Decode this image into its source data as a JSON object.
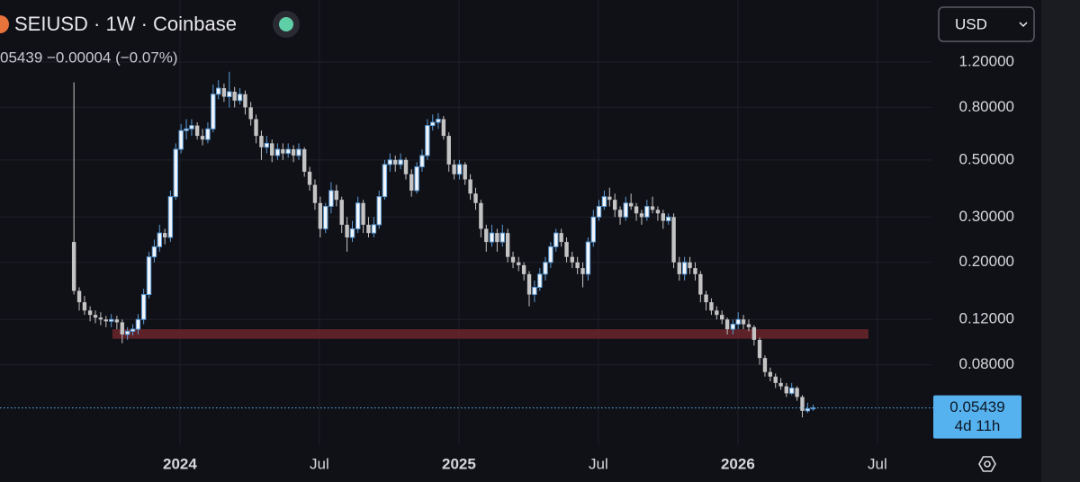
{
  "chart_data": {
    "type": "candlestick",
    "title": "SEIUSD · 1W · Coinbase",
    "ohlc_summary": "05439 −0.00004 (−0.07%)",
    "currency": "USD",
    "countdown": "4d 11h",
    "last_price": 0.05439,
    "log_scale": true,
    "grid": true,
    "up_color": "#5b9bd5",
    "down_color": "#c4c4c4",
    "zone": {
      "color": "#6b262c",
      "ylim": [
        0.101,
        0.11
      ],
      "xlim": [
        2023.758,
        2026.468
      ]
    },
    "xlim": [
      2023.355,
      2026.694
    ],
    "xticks": [
      2024,
      {
        "value": 2024.5,
        "label": "Jul"
      },
      2025,
      {
        "value": 2025.5,
        "label": "Jul"
      },
      2026,
      {
        "value": 2026.5,
        "label": "Jul"
      }
    ],
    "ylim": [
      0.039,
      2.09
    ],
    "yticks": [
      {
        "value": 1.2,
        "label": "1.20000"
      },
      {
        "value": 0.8,
        "label": "0.80000"
      },
      {
        "value": 0.5,
        "label": "0.50000"
      },
      {
        "value": 0.3,
        "label": "0.30000"
      },
      {
        "value": 0.2,
        "label": "0.20000"
      },
      {
        "value": 0.12,
        "label": "0.12000"
      },
      {
        "value": 0.08,
        "label": "0.08000"
      }
    ],
    "x": [
      2023.62,
      2023.639,
      2023.658,
      2023.678,
      2023.697,
      2023.716,
      2023.735,
      2023.754,
      2023.774,
      2023.793,
      2023.812,
      2023.831,
      2023.85,
      2023.87,
      2023.889,
      2023.908,
      2023.927,
      2023.946,
      2023.966,
      2023.985,
      2024.004,
      2024.023,
      2024.042,
      2024.062,
      2024.081,
      2024.1,
      2024.119,
      2024.138,
      2024.158,
      2024.177,
      2024.196,
      2024.215,
      2024.234,
      2024.254,
      2024.273,
      2024.292,
      2024.311,
      2024.33,
      2024.35,
      2024.369,
      2024.388,
      2024.407,
      2024.426,
      2024.446,
      2024.465,
      2024.484,
      2024.503,
      2024.522,
      2024.542,
      2024.561,
      2024.58,
      2024.599,
      2024.618,
      2024.638,
      2024.657,
      2024.676,
      2024.695,
      2024.714,
      2024.734,
      2024.753,
      2024.772,
      2024.791,
      2024.81,
      2024.83,
      2024.849,
      2024.868,
      2024.887,
      2024.906,
      2024.926,
      2024.945,
      2024.964,
      2024.983,
      2025.002,
      2025.022,
      2025.041,
      2025.06,
      2025.079,
      2025.098,
      2025.118,
      2025.137,
      2025.156,
      2025.175,
      2025.194,
      2025.214,
      2025.233,
      2025.252,
      2025.271,
      2025.29,
      2025.31,
      2025.329,
      2025.348,
      2025.367,
      2025.386,
      2025.406,
      2025.425,
      2025.444,
      2025.463,
      2025.482,
      2025.502,
      2025.521,
      2025.54,
      2025.559,
      2025.578,
      2025.598,
      2025.617,
      2025.636,
      2025.655,
      2025.674,
      2025.694,
      2025.713,
      2025.732,
      2025.751,
      2025.77,
      2025.79,
      2025.809,
      2025.828,
      2025.847,
      2025.866,
      2025.886,
      2025.905,
      2025.924,
      2025.943,
      2025.962,
      2025.982,
      2026.001,
      2026.02,
      2026.039,
      2026.058,
      2026.078,
      2026.097,
      2026.116,
      2026.135,
      2026.154,
      2026.174,
      2026.193,
      2026.212,
      2026.231,
      2026.25,
      2026.27
    ],
    "ohlc": [
      [
        0.24,
        1.0,
        0.15,
        0.155
      ],
      [
        0.155,
        0.16,
        0.13,
        0.14
      ],
      [
        0.14,
        0.148,
        0.125,
        0.13
      ],
      [
        0.13,
        0.135,
        0.118,
        0.125
      ],
      [
        0.125,
        0.13,
        0.116,
        0.122
      ],
      [
        0.122,
        0.128,
        0.114,
        0.12
      ],
      [
        0.12,
        0.124,
        0.112,
        0.118
      ],
      [
        0.118,
        0.126,
        0.112,
        0.12
      ],
      [
        0.12,
        0.124,
        0.11,
        0.117
      ],
      [
        0.117,
        0.12,
        0.097,
        0.105
      ],
      [
        0.105,
        0.112,
        0.1,
        0.108
      ],
      [
        0.108,
        0.115,
        0.104,
        0.11
      ],
      [
        0.11,
        0.126,
        0.105,
        0.12
      ],
      [
        0.12,
        0.158,
        0.115,
        0.15
      ],
      [
        0.15,
        0.22,
        0.145,
        0.21
      ],
      [
        0.21,
        0.245,
        0.2,
        0.23
      ],
      [
        0.23,
        0.28,
        0.22,
        0.26
      ],
      [
        0.26,
        0.27,
        0.235,
        0.25
      ],
      [
        0.25,
        0.38,
        0.24,
        0.36
      ],
      [
        0.36,
        0.58,
        0.35,
        0.55
      ],
      [
        0.55,
        0.69,
        0.53,
        0.65
      ],
      [
        0.65,
        0.72,
        0.6,
        0.66
      ],
      [
        0.66,
        0.72,
        0.62,
        0.68
      ],
      [
        0.68,
        0.7,
        0.6,
        0.62
      ],
      [
        0.62,
        0.66,
        0.57,
        0.6
      ],
      [
        0.6,
        0.7,
        0.58,
        0.66
      ],
      [
        0.66,
        0.98,
        0.64,
        0.9
      ],
      [
        0.9,
        1.02,
        0.86,
        0.95
      ],
      [
        0.95,
        0.99,
        0.84,
        0.88
      ],
      [
        0.88,
        1.1,
        0.8,
        0.92
      ],
      [
        0.92,
        0.96,
        0.8,
        0.85
      ],
      [
        0.85,
        0.95,
        0.82,
        0.9
      ],
      [
        0.9,
        0.93,
        0.75,
        0.8
      ],
      [
        0.8,
        0.84,
        0.68,
        0.72
      ],
      [
        0.72,
        0.75,
        0.58,
        0.62
      ],
      [
        0.62,
        0.65,
        0.5,
        0.56
      ],
      [
        0.56,
        0.62,
        0.53,
        0.58
      ],
      [
        0.58,
        0.6,
        0.49,
        0.52
      ],
      [
        0.52,
        0.58,
        0.5,
        0.55
      ],
      [
        0.55,
        0.58,
        0.5,
        0.53
      ],
      [
        0.53,
        0.58,
        0.51,
        0.55
      ],
      [
        0.55,
        0.57,
        0.49,
        0.52
      ],
      [
        0.52,
        0.58,
        0.5,
        0.55
      ],
      [
        0.55,
        0.56,
        0.43,
        0.45
      ],
      [
        0.45,
        0.47,
        0.38,
        0.4
      ],
      [
        0.4,
        0.42,
        0.32,
        0.34
      ],
      [
        0.34,
        0.36,
        0.25,
        0.27
      ],
      [
        0.27,
        0.34,
        0.26,
        0.33
      ],
      [
        0.33,
        0.41,
        0.31,
        0.38
      ],
      [
        0.38,
        0.4,
        0.33,
        0.35
      ],
      [
        0.35,
        0.36,
        0.26,
        0.28
      ],
      [
        0.28,
        0.3,
        0.22,
        0.25
      ],
      [
        0.25,
        0.29,
        0.24,
        0.27
      ],
      [
        0.27,
        0.36,
        0.26,
        0.34
      ],
      [
        0.34,
        0.35,
        0.26,
        0.28
      ],
      [
        0.28,
        0.3,
        0.25,
        0.26
      ],
      [
        0.26,
        0.3,
        0.25,
        0.28
      ],
      [
        0.28,
        0.38,
        0.27,
        0.36
      ],
      [
        0.36,
        0.5,
        0.35,
        0.48
      ],
      [
        0.48,
        0.53,
        0.45,
        0.5
      ],
      [
        0.5,
        0.52,
        0.45,
        0.48
      ],
      [
        0.48,
        0.53,
        0.46,
        0.5
      ],
      [
        0.5,
        0.51,
        0.42,
        0.44
      ],
      [
        0.44,
        0.46,
        0.36,
        0.38
      ],
      [
        0.38,
        0.49,
        0.37,
        0.47
      ],
      [
        0.47,
        0.55,
        0.45,
        0.52
      ],
      [
        0.52,
        0.72,
        0.5,
        0.68
      ],
      [
        0.68,
        0.75,
        0.65,
        0.7
      ],
      [
        0.7,
        0.76,
        0.66,
        0.72
      ],
      [
        0.72,
        0.74,
        0.6,
        0.62
      ],
      [
        0.62,
        0.64,
        0.45,
        0.48
      ],
      [
        0.48,
        0.5,
        0.42,
        0.44
      ],
      [
        0.44,
        0.5,
        0.42,
        0.48
      ],
      [
        0.48,
        0.49,
        0.4,
        0.42
      ],
      [
        0.42,
        0.44,
        0.35,
        0.37
      ],
      [
        0.37,
        0.39,
        0.32,
        0.34
      ],
      [
        0.34,
        0.35,
        0.25,
        0.27
      ],
      [
        0.27,
        0.28,
        0.22,
        0.24
      ],
      [
        0.24,
        0.28,
        0.23,
        0.26
      ],
      [
        0.26,
        0.27,
        0.22,
        0.24
      ],
      [
        0.24,
        0.28,
        0.23,
        0.26
      ],
      [
        0.26,
        0.27,
        0.2,
        0.21
      ],
      [
        0.21,
        0.22,
        0.19,
        0.2
      ],
      [
        0.2,
        0.21,
        0.185,
        0.195
      ],
      [
        0.195,
        0.2,
        0.17,
        0.18
      ],
      [
        0.18,
        0.185,
        0.135,
        0.15
      ],
      [
        0.15,
        0.17,
        0.14,
        0.16
      ],
      [
        0.16,
        0.19,
        0.155,
        0.18
      ],
      [
        0.18,
        0.21,
        0.17,
        0.2
      ],
      [
        0.2,
        0.24,
        0.19,
        0.23
      ],
      [
        0.23,
        0.27,
        0.22,
        0.26
      ],
      [
        0.26,
        0.27,
        0.23,
        0.24
      ],
      [
        0.24,
        0.25,
        0.2,
        0.21
      ],
      [
        0.21,
        0.22,
        0.19,
        0.2
      ],
      [
        0.2,
        0.21,
        0.18,
        0.19
      ],
      [
        0.19,
        0.2,
        0.16,
        0.18
      ],
      [
        0.18,
        0.25,
        0.17,
        0.24
      ],
      [
        0.24,
        0.32,
        0.23,
        0.3
      ],
      [
        0.3,
        0.35,
        0.29,
        0.33
      ],
      [
        0.33,
        0.38,
        0.32,
        0.36
      ],
      [
        0.36,
        0.39,
        0.33,
        0.35
      ],
      [
        0.35,
        0.37,
        0.3,
        0.32
      ],
      [
        0.32,
        0.33,
        0.28,
        0.3
      ],
      [
        0.3,
        0.36,
        0.29,
        0.34
      ],
      [
        0.34,
        0.37,
        0.32,
        0.33
      ],
      [
        0.33,
        0.34,
        0.29,
        0.31
      ],
      [
        0.31,
        0.32,
        0.28,
        0.3
      ],
      [
        0.3,
        0.35,
        0.29,
        0.33
      ],
      [
        0.33,
        0.36,
        0.31,
        0.32
      ],
      [
        0.32,
        0.33,
        0.29,
        0.31
      ],
      [
        0.31,
        0.32,
        0.27,
        0.29
      ],
      [
        0.29,
        0.31,
        0.28,
        0.3
      ],
      [
        0.3,
        0.31,
        0.19,
        0.2
      ],
      [
        0.2,
        0.21,
        0.17,
        0.18
      ],
      [
        0.18,
        0.21,
        0.17,
        0.2
      ],
      [
        0.2,
        0.21,
        0.18,
        0.19
      ],
      [
        0.19,
        0.2,
        0.17,
        0.18
      ],
      [
        0.18,
        0.185,
        0.14,
        0.15
      ],
      [
        0.15,
        0.155,
        0.13,
        0.14
      ],
      [
        0.14,
        0.145,
        0.125,
        0.13
      ],
      [
        0.13,
        0.135,
        0.12,
        0.125
      ],
      [
        0.125,
        0.13,
        0.115,
        0.12
      ],
      [
        0.12,
        0.122,
        0.105,
        0.11
      ],
      [
        0.11,
        0.12,
        0.105,
        0.115
      ],
      [
        0.115,
        0.128,
        0.11,
        0.12
      ],
      [
        0.12,
        0.125,
        0.11,
        0.115
      ],
      [
        0.115,
        0.12,
        0.108,
        0.112
      ],
      [
        0.112,
        0.114,
        0.095,
        0.1
      ],
      [
        0.1,
        0.102,
        0.08,
        0.085
      ],
      [
        0.085,
        0.087,
        0.072,
        0.075
      ],
      [
        0.075,
        0.078,
        0.069,
        0.072
      ],
      [
        0.072,
        0.074,
        0.065,
        0.068
      ],
      [
        0.068,
        0.071,
        0.064,
        0.066
      ],
      [
        0.066,
        0.068,
        0.06,
        0.062
      ],
      [
        0.062,
        0.068,
        0.061,
        0.065
      ],
      [
        0.065,
        0.066,
        0.058,
        0.06
      ],
      [
        0.06,
        0.061,
        0.05,
        0.053
      ],
      [
        0.053,
        0.057,
        0.052,
        0.054
      ],
      [
        0.054,
        0.056,
        0.053,
        0.05439
      ]
    ]
  }
}
